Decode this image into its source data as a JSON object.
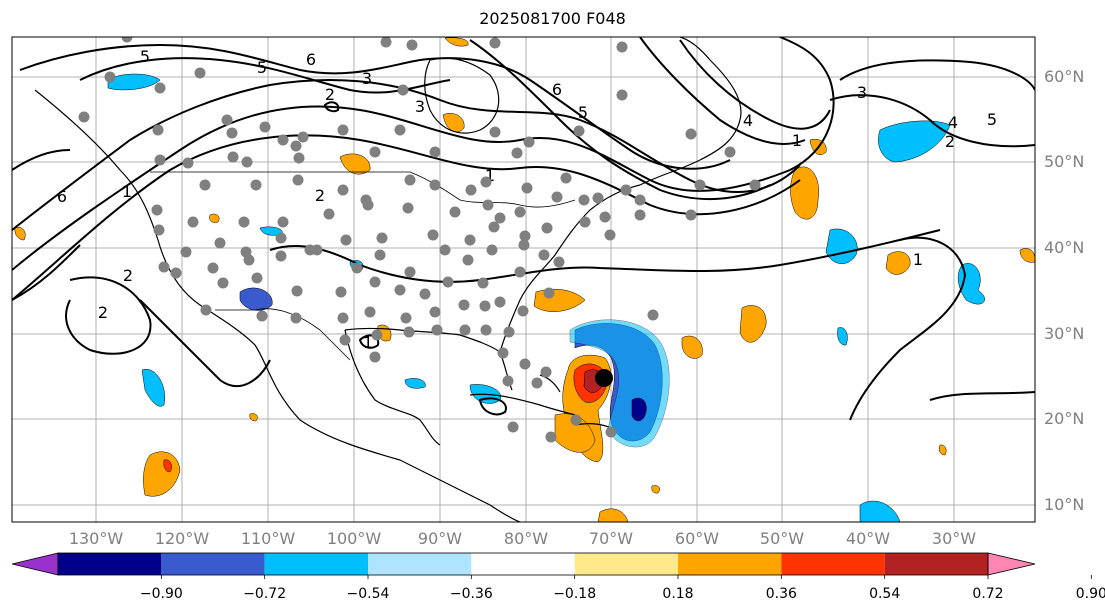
{
  "title": "2025081700 F048",
  "latitude_labels": [
    "60°N",
    "50°N",
    "40°N",
    "30°N",
    "20°N",
    "10°N"
  ],
  "longitude_labels": [
    "130°W",
    "120°W",
    "110°W",
    "100°W",
    "90°W",
    "80°W",
    "70°W",
    "60°W",
    "50°W",
    "40°W",
    "30°W"
  ],
  "contour_labels": [
    "5",
    "5",
    "6",
    "3",
    "2",
    "3",
    "6",
    "5",
    "4",
    "1",
    "3",
    "4",
    "5",
    "2",
    "6",
    "1",
    "1",
    "2",
    "2",
    "1",
    "1",
    "2"
  ],
  "colorbar": {
    "tick_labels": [
      "−0.90",
      "−0.72",
      "−0.54",
      "−0.36",
      "−0.18",
      "0.18",
      "0.36",
      "0.54",
      "0.72",
      "0.90"
    ],
    "colors": [
      "#9932cc",
      "#00008b",
      "#3a5bcd",
      "#00bfff",
      "#aee4ff",
      "#ffffff",
      "#ffe98a",
      "#ffa500",
      "#ff3300",
      "#b22222",
      "#ff85b3"
    ]
  },
  "colors": {
    "station_dot": "#808080",
    "storm_center": "#000000",
    "grid": "#b0b0b0",
    "contour": "#000000",
    "coastline": "#000000"
  }
}
